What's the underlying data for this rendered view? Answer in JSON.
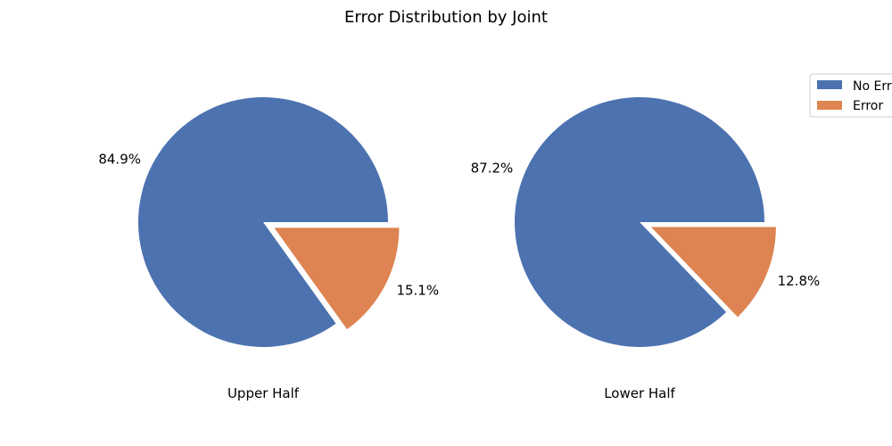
{
  "title": "Error Distribution by Joint",
  "legend": {
    "placement": "top-right",
    "entries": [
      {
        "label": "No Error",
        "color": "#4c72b0"
      },
      {
        "label": "Error",
        "color": "#dd8452"
      }
    ]
  },
  "chart_data": [
    {
      "type": "pie",
      "title": "",
      "xlabel": "Upper Half",
      "slices": [
        {
          "label": "No Error",
          "value": 84.9,
          "pct_label": "84.9%",
          "color": "#4c72b0",
          "explode": 0
        },
        {
          "label": "Error",
          "value": 15.1,
          "pct_label": "15.1%",
          "color": "#dd8452",
          "explode": 0.1
        }
      ]
    },
    {
      "type": "pie",
      "title": "",
      "xlabel": "Lower Half",
      "slices": [
        {
          "label": "No Error",
          "value": 87.2,
          "pct_label": "87.2%",
          "color": "#4c72b0",
          "explode": 0
        },
        {
          "label": "Error",
          "value": 12.8,
          "pct_label": "12.8%",
          "color": "#dd8452",
          "explode": 0.1
        }
      ]
    }
  ]
}
